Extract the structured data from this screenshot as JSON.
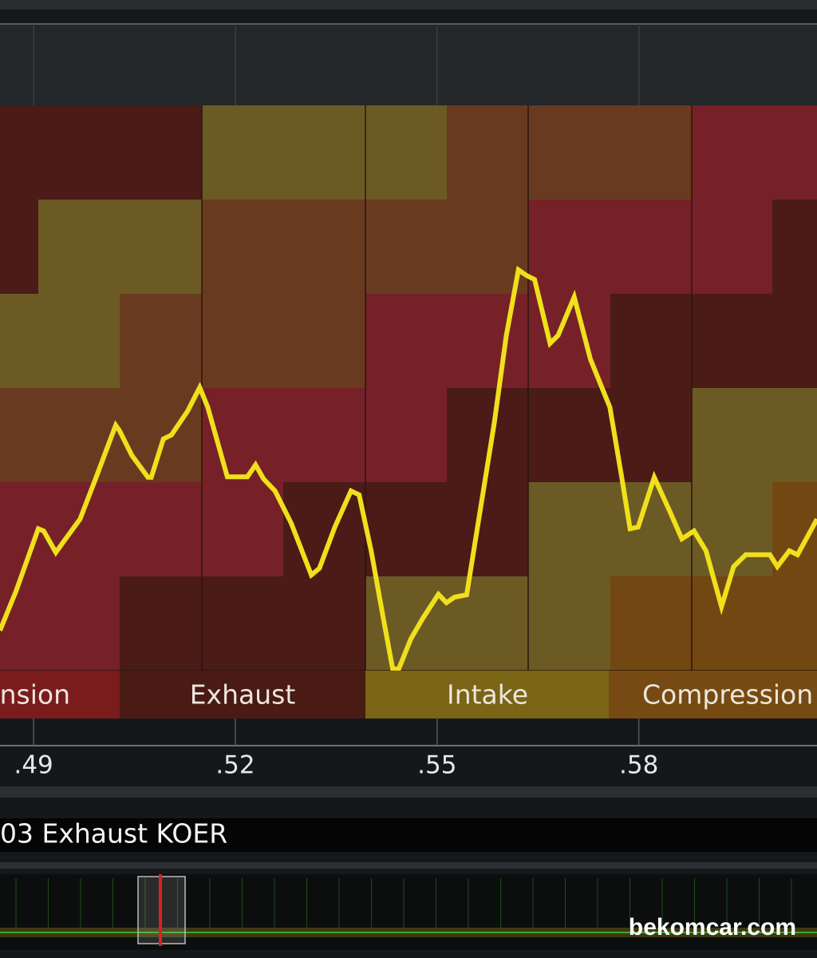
{
  "chart_data": {
    "type": "line",
    "x": [
      0.485,
      0.4874,
      0.4907,
      0.4915,
      0.4933,
      0.4945,
      0.4969,
      0.4992,
      0.5022,
      0.5028,
      0.5046,
      0.507,
      0.5075,
      0.5093,
      0.5105,
      0.5129,
      0.5147,
      0.5159,
      0.5188,
      0.5218,
      0.523,
      0.5242,
      0.5259,
      0.5283,
      0.5313,
      0.5325,
      0.5348,
      0.5372,
      0.5384,
      0.5402,
      0.5419,
      0.5434,
      0.5443,
      0.5461,
      0.5479,
      0.5502,
      0.5514,
      0.5526,
      0.5544,
      0.5562,
      0.5585,
      0.5603,
      0.5621,
      0.5633,
      0.5645,
      0.5668,
      0.568,
      0.5704,
      0.5728,
      0.5757,
      0.5775,
      0.5787,
      0.5799,
      0.5823,
      0.5846,
      0.5864,
      0.5882,
      0.59,
      0.5923,
      0.5941,
      0.5959,
      0.5995,
      0.6006,
      0.6024,
      0.6036,
      0.6065
    ],
    "values": [
      7.1,
      14.1,
      25.1,
      24.7,
      20.9,
      22.9,
      26.8,
      33.9,
      43.4,
      42.4,
      38.1,
      34.2,
      34.2,
      41.0,
      41.7,
      45.9,
      50.1,
      46.6,
      34.3,
      34.3,
      36.4,
      33.9,
      31.8,
      26.1,
      16.9,
      18.1,
      25.4,
      31.8,
      31.1,
      21.2,
      9.9,
      0.3,
      0.3,
      5.6,
      9.3,
      13.5,
      12.0,
      13.0,
      13.4,
      26.8,
      43.8,
      59.3,
      70.9,
      69.9,
      69.2,
      57.9,
      59.3,
      66.1,
      55.1,
      46.6,
      33.9,
      25.1,
      25.4,
      34.2,
      28.2,
      23.3,
      24.7,
      21.2,
      11.3,
      18.4,
      20.5,
      20.5,
      18.4,
      21.2,
      20.5,
      26.8
    ],
    "color": "#f0e01c",
    "xlim": [
      0.485,
      0.6065
    ],
    "ylim": [
      0,
      100
    ],
    "xticks": [
      {
        "value": 0.49,
        "label": ".49"
      },
      {
        "value": 0.52,
        "label": ".52"
      },
      {
        "value": 0.55,
        "label": ".55"
      },
      {
        "value": 0.58,
        "label": ".58"
      }
    ],
    "grid": true,
    "phases": [
      "Expansion",
      "Exhaust",
      "Intake",
      "Compression"
    ],
    "status": "03 Exhaust KOER"
  },
  "watermark": "bekomcar.com"
}
